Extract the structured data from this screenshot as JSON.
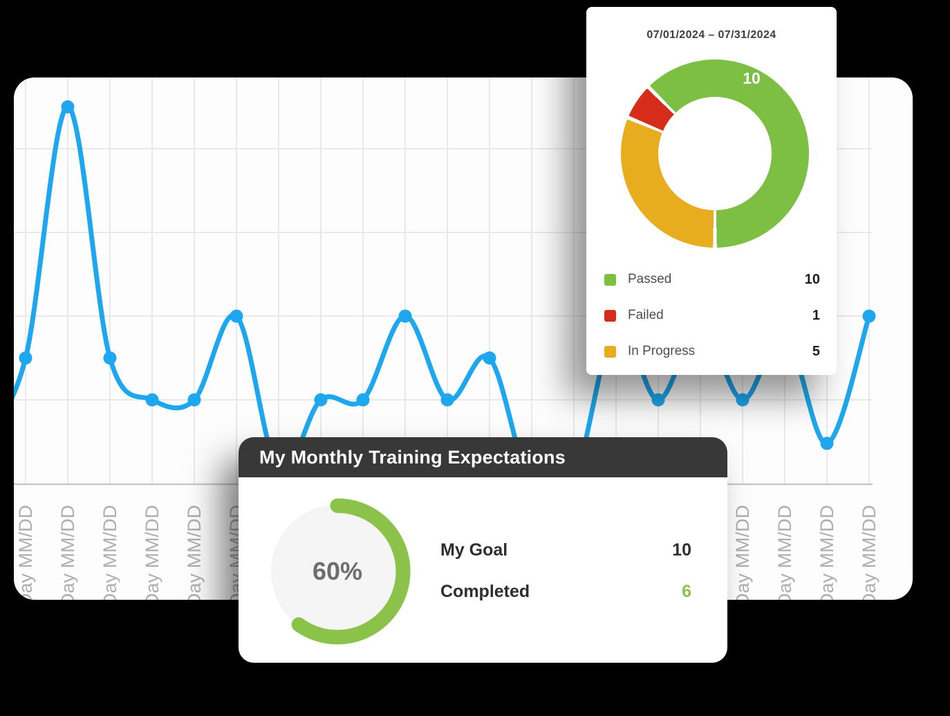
{
  "page": {
    "background_color": "#000000"
  },
  "chart_card": {
    "x_axis_label": "Day MM/DD",
    "line_color": "#1ea7ee",
    "grid_color": "#e9e9e9",
    "axis_color": "#c9c9c9"
  },
  "donut_card": {
    "date_range": "07/01/2024  – 07/31/2024",
    "center_value": "10",
    "legend": [
      {
        "label": "Passed",
        "value": "10",
        "color": "#7dbf43"
      },
      {
        "label": "Failed",
        "value": "1",
        "color": "#d52d1a"
      },
      {
        "label": "In Progress",
        "value": "5",
        "color": "#e8ac1f"
      }
    ]
  },
  "expectations_card": {
    "title": "My Monthly Training Expectations",
    "progress_text": "60%",
    "progress_color": "#8bc34a",
    "goal_label": "My Goal",
    "goal_value": "10",
    "completed_label": "Completed",
    "completed_value": "6"
  },
  "chart_data": [
    {
      "type": "line",
      "title": "",
      "x_tick_label_repeated": "Day MM/DD",
      "n_points": 21,
      "values": [
        1.5,
        4.5,
        1.5,
        1,
        1,
        2,
        0.15,
        1,
        1,
        2,
        1,
        1.5,
        -0.05,
        0.05,
        1.9,
        1,
        1.9,
        1,
        1.8,
        0.48,
        2
      ],
      "ylim": [
        0,
        4.85
      ],
      "y_gridline_step": 1,
      "grid": true,
      "legend_position": "none"
    },
    {
      "type": "donut",
      "title": "07/01/2024 – 07/31/2024",
      "labels": [
        "Passed",
        "Failed",
        "In Progress"
      ],
      "values": [
        10,
        1,
        5
      ],
      "colors": [
        "#7dbf43",
        "#d52d1a",
        "#e8ac1f"
      ],
      "center_label": "10",
      "order_clockwise_from_bottom": [
        "In Progress",
        "Failed",
        "Passed"
      ],
      "legend_position": "bottom"
    },
    {
      "type": "progress",
      "percent": 60,
      "goal": 10,
      "completed": 6
    }
  ]
}
